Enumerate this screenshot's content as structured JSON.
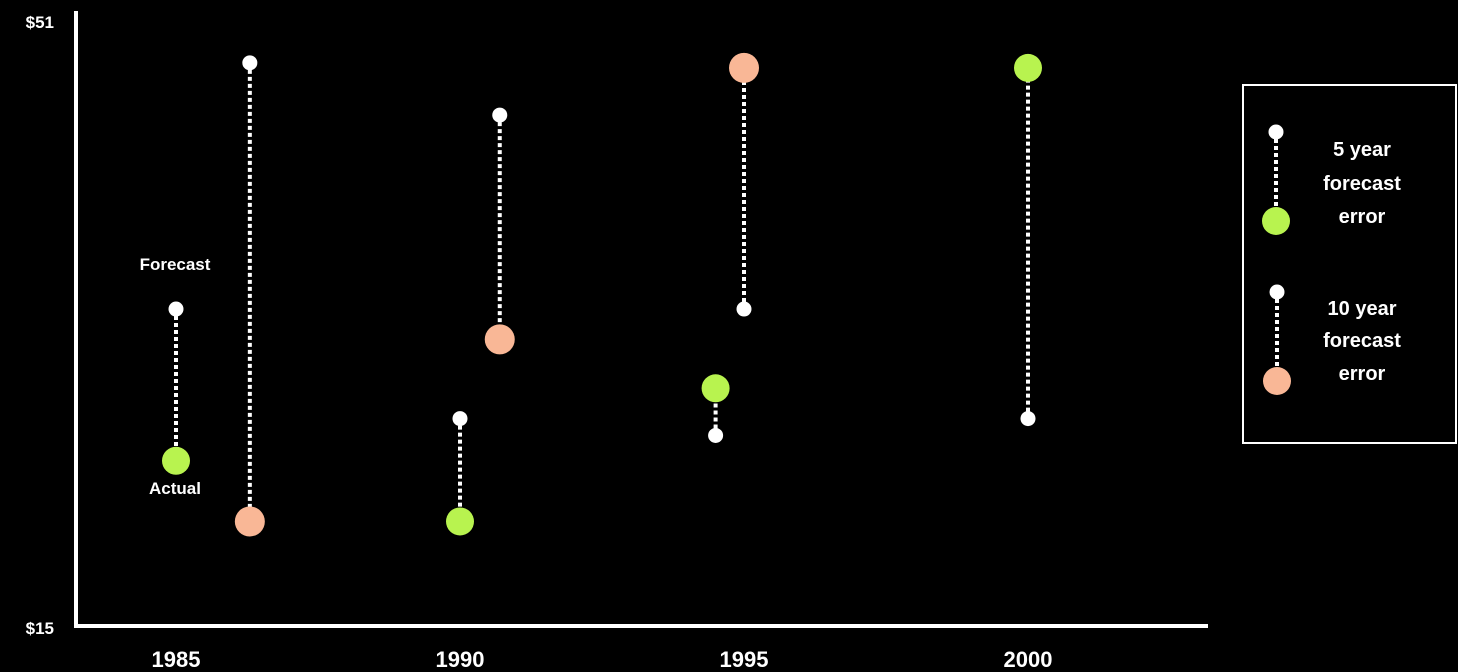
{
  "chart_data": {
    "type": "scatter",
    "title": "",
    "xlabel": "",
    "ylabel": "",
    "x_ticks": [
      "1985",
      "1990",
      "1995",
      "2000"
    ],
    "y_tick_labels": [
      "$51",
      "$15"
    ],
    "ylim": [
      15,
      51
    ],
    "grid": false,
    "legend_placement": "right",
    "colors": {
      "forecast": "#ffffff",
      "actual_5yr": "#b8f34f",
      "actual_10yr": "#f9b796",
      "background": "#000000"
    },
    "series": [
      {
        "name": "5 year forecast error",
        "points": [
          {
            "x": 1985,
            "forecast": 33.8,
            "actual": 24.8
          },
          {
            "x": 1990,
            "forecast": 27.3,
            "actual": 21.2
          },
          {
            "x": 1994.5,
            "forecast": 26.3,
            "actual": 29.1
          },
          {
            "x": 2000,
            "forecast": 27.3,
            "actual": 48.1
          }
        ]
      },
      {
        "name": "10 year forecast error",
        "points": [
          {
            "x": 1986.3,
            "forecast": 48.4,
            "actual": 21.2
          },
          {
            "x": 1990.7,
            "forecast": 45.3,
            "actual": 32.0
          },
          {
            "x": 1995,
            "forecast": 33.8,
            "actual": 48.1
          }
        ]
      }
    ],
    "annotations": {
      "forecast_label": "Forecast",
      "actual_label": "Actual"
    },
    "legend": {
      "entries": [
        {
          "lines": [
            "5 year",
            "forecast",
            "error"
          ],
          "color": "#b8f34f"
        },
        {
          "lines": [
            "10 year",
            "forecast",
            "error"
          ],
          "color": "#f9b796"
        }
      ]
    }
  }
}
